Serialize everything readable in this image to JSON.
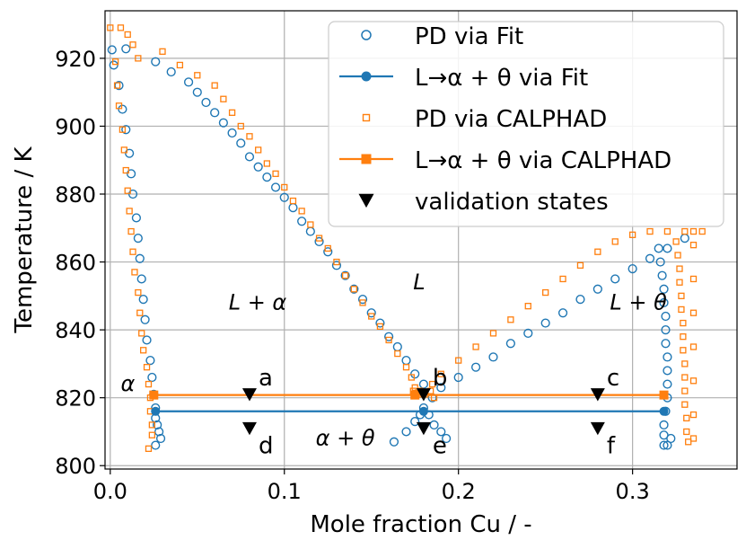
{
  "chart_data": {
    "type": "scatter",
    "xlabel": "Mole fraction Cu / -",
    "ylabel": "Temperature / K",
    "xlim": [
      -0.003,
      0.36
    ],
    "ylim": [
      799,
      934
    ],
    "xticks": [
      0.0,
      0.1,
      0.2,
      0.3
    ],
    "xtick_labels": [
      "0.0",
      "0.1",
      "0.2",
      "0.3"
    ],
    "yticks": [
      800,
      820,
      840,
      860,
      880,
      900,
      920
    ],
    "ytick_labels": [
      "800",
      "820",
      "840",
      "860",
      "880",
      "900",
      "920"
    ],
    "grid": true,
    "legend_position": "top-right",
    "colors": {
      "fit": "#1f77b4",
      "calphad": "#ff7f0e",
      "validation": "#000000"
    },
    "series": [
      {
        "name": "PD via Fit",
        "legend": "PD via Fit",
        "marker": "open-circle",
        "color": "#1f77b4",
        "points": [
          [
            0.001,
            922.5
          ],
          [
            0.009,
            922.8
          ],
          [
            0.002,
            918
          ],
          [
            0.005,
            912
          ],
          [
            0.007,
            905
          ],
          [
            0.009,
            899
          ],
          [
            0.011,
            892
          ],
          [
            0.012,
            886
          ],
          [
            0.013,
            880
          ],
          [
            0.015,
            873
          ],
          [
            0.016,
            867
          ],
          [
            0.017,
            861
          ],
          [
            0.018,
            855
          ],
          [
            0.019,
            849
          ],
          [
            0.02,
            843
          ],
          [
            0.021,
            837
          ],
          [
            0.023,
            831
          ],
          [
            0.024,
            826
          ],
          [
            0.025,
            821
          ],
          [
            0.026,
            817
          ],
          [
            0.026,
            814
          ],
          [
            0.027,
            812
          ],
          [
            0.028,
            810
          ],
          [
            0.029,
            808
          ],
          [
            0.026,
            806
          ],
          [
            0.026,
            919
          ],
          [
            0.035,
            916
          ],
          [
            0.045,
            913
          ],
          [
            0.05,
            910
          ],
          [
            0.055,
            907
          ],
          [
            0.06,
            904
          ],
          [
            0.065,
            901
          ],
          [
            0.07,
            898
          ],
          [
            0.075,
            895
          ],
          [
            0.08,
            891
          ],
          [
            0.085,
            888
          ],
          [
            0.09,
            885
          ],
          [
            0.095,
            882
          ],
          [
            0.1,
            879
          ],
          [
            0.105,
            876
          ],
          [
            0.11,
            872
          ],
          [
            0.115,
            869
          ],
          [
            0.12,
            866
          ],
          [
            0.125,
            863
          ],
          [
            0.13,
            859
          ],
          [
            0.135,
            856
          ],
          [
            0.14,
            852
          ],
          [
            0.145,
            849
          ],
          [
            0.15,
            845
          ],
          [
            0.155,
            842
          ],
          [
            0.16,
            838
          ],
          [
            0.165,
            835
          ],
          [
            0.17,
            831
          ],
          [
            0.175,
            827
          ],
          [
            0.18,
            824
          ],
          [
            0.185,
            820
          ],
          [
            0.19,
            823
          ],
          [
            0.2,
            826
          ],
          [
            0.21,
            829
          ],
          [
            0.22,
            832
          ],
          [
            0.23,
            836
          ],
          [
            0.24,
            839
          ],
          [
            0.25,
            842
          ],
          [
            0.26,
            845
          ],
          [
            0.27,
            849
          ],
          [
            0.28,
            852
          ],
          [
            0.29,
            855
          ],
          [
            0.3,
            858
          ],
          [
            0.31,
            861
          ],
          [
            0.32,
            864
          ],
          [
            0.33,
            867
          ],
          [
            0.315,
            864
          ],
          [
            0.316,
            860
          ],
          [
            0.317,
            856
          ],
          [
            0.318,
            852
          ],
          [
            0.318,
            848
          ],
          [
            0.319,
            844
          ],
          [
            0.319,
            840
          ],
          [
            0.319,
            836
          ],
          [
            0.32,
            832
          ],
          [
            0.32,
            828
          ],
          [
            0.32,
            824
          ],
          [
            0.32,
            820
          ],
          [
            0.319,
            816
          ],
          [
            0.318,
            812
          ],
          [
            0.318,
            809
          ],
          [
            0.318,
            806
          ],
          [
            0.32,
            806
          ],
          [
            0.322,
            808
          ],
          [
            0.163,
            807
          ],
          [
            0.17,
            810
          ],
          [
            0.175,
            813
          ],
          [
            0.178,
            815
          ],
          [
            0.18,
            817
          ],
          [
            0.183,
            815
          ],
          [
            0.186,
            812
          ],
          [
            0.19,
            810
          ],
          [
            0.193,
            808
          ]
        ]
      },
      {
        "name": "L→α+θ via Fit",
        "legend": "L→α + θ via Fit",
        "marker": "line-dot",
        "color": "#1f77b4",
        "x": [
          0.026,
          0.18,
          0.318
        ],
        "y": [
          816,
          816,
          816
        ]
      },
      {
        "name": "PD via CALPHAD",
        "legend": "PD via CALPHAD",
        "marker": "open-square",
        "color": "#ff7f0e",
        "points": [
          [
            0.0,
            929
          ],
          [
            0.006,
            929
          ],
          [
            0.01,
            927
          ],
          [
            0.013,
            924
          ],
          [
            0.016,
            920
          ],
          [
            0.003,
            919
          ],
          [
            0.004,
            912
          ],
          [
            0.005,
            906
          ],
          [
            0.007,
            899
          ],
          [
            0.008,
            893
          ],
          [
            0.009,
            887
          ],
          [
            0.01,
            881
          ],
          [
            0.011,
            875
          ],
          [
            0.012,
            869
          ],
          [
            0.013,
            863
          ],
          [
            0.014,
            857
          ],
          [
            0.016,
            851
          ],
          [
            0.017,
            845
          ],
          [
            0.018,
            839
          ],
          [
            0.019,
            834
          ],
          [
            0.021,
            829
          ],
          [
            0.022,
            824
          ],
          [
            0.023,
            820
          ],
          [
            0.023,
            816
          ],
          [
            0.024,
            812
          ],
          [
            0.024,
            809
          ],
          [
            0.022,
            805
          ],
          [
            0.03,
            922
          ],
          [
            0.04,
            918
          ],
          [
            0.05,
            915
          ],
          [
            0.06,
            912
          ],
          [
            0.065,
            908
          ],
          [
            0.07,
            904
          ],
          [
            0.075,
            900
          ],
          [
            0.08,
            897
          ],
          [
            0.085,
            893
          ],
          [
            0.09,
            889
          ],
          [
            0.095,
            886
          ],
          [
            0.1,
            882
          ],
          [
            0.105,
            878
          ],
          [
            0.11,
            875
          ],
          [
            0.115,
            871
          ],
          [
            0.12,
            867
          ],
          [
            0.125,
            864
          ],
          [
            0.13,
            860
          ],
          [
            0.135,
            856
          ],
          [
            0.14,
            852
          ],
          [
            0.145,
            848
          ],
          [
            0.15,
            844
          ],
          [
            0.155,
            841
          ],
          [
            0.16,
            837
          ],
          [
            0.165,
            833
          ],
          [
            0.17,
            829
          ],
          [
            0.173,
            826
          ],
          [
            0.175,
            823
          ],
          [
            0.177,
            821
          ],
          [
            0.185,
            824
          ],
          [
            0.19,
            827
          ],
          [
            0.2,
            831
          ],
          [
            0.21,
            835
          ],
          [
            0.22,
            839
          ],
          [
            0.23,
            843
          ],
          [
            0.24,
            847
          ],
          [
            0.25,
            851
          ],
          [
            0.26,
            855
          ],
          [
            0.27,
            859
          ],
          [
            0.28,
            863
          ],
          [
            0.29,
            866
          ],
          [
            0.3,
            868
          ],
          [
            0.31,
            869
          ],
          [
            0.32,
            869
          ],
          [
            0.33,
            869
          ],
          [
            0.335,
            869
          ],
          [
            0.34,
            869
          ],
          [
            0.325,
            866
          ],
          [
            0.326,
            862
          ],
          [
            0.327,
            858
          ],
          [
            0.327,
            854
          ],
          [
            0.328,
            850
          ],
          [
            0.328,
            846
          ],
          [
            0.329,
            842
          ],
          [
            0.329,
            838
          ],
          [
            0.329,
            834
          ],
          [
            0.33,
            830
          ],
          [
            0.33,
            826
          ],
          [
            0.33,
            822
          ],
          [
            0.33,
            818
          ],
          [
            0.331,
            814
          ],
          [
            0.331,
            810
          ],
          [
            0.332,
            807
          ],
          [
            0.335,
            865
          ],
          [
            0.335,
            855
          ],
          [
            0.335,
            845
          ],
          [
            0.335,
            835
          ],
          [
            0.335,
            825
          ],
          [
            0.335,
            815
          ],
          [
            0.335,
            808
          ],
          [
            0.174,
            822
          ],
          [
            0.178,
            822
          ],
          [
            0.181,
            821
          ],
          [
            0.184,
            822
          ],
          [
            0.186,
            820
          ]
        ]
      },
      {
        "name": "L→α+θ via CALPHAD",
        "legend": "L→α + θ via CALPHAD",
        "marker": "line-square",
        "color": "#ff7f0e",
        "x": [
          0.025,
          0.175,
          0.318
        ],
        "y": [
          820.8,
          820.8,
          820.8
        ]
      },
      {
        "name": "validation states",
        "legend": "validation states",
        "marker": "filled-triangle-down",
        "color": "#000000",
        "points": [
          [
            0.08,
            821
          ],
          [
            0.18,
            821
          ],
          [
            0.28,
            821
          ],
          [
            0.08,
            811
          ],
          [
            0.18,
            811
          ],
          [
            0.28,
            811
          ]
        ],
        "labels": [
          "a",
          "b",
          "c",
          "d",
          "e",
          "f"
        ]
      }
    ],
    "annotations": [
      {
        "text": "α",
        "x": 0.006,
        "y": 822
      },
      {
        "text": "L + α",
        "x": 0.068,
        "y": 846
      },
      {
        "text": "L",
        "x": 0.174,
        "y": 852
      },
      {
        "text": "L + θ",
        "x": 0.287,
        "y": 846
      },
      {
        "text": "α + θ",
        "x": 0.118,
        "y": 806
      }
    ]
  }
}
